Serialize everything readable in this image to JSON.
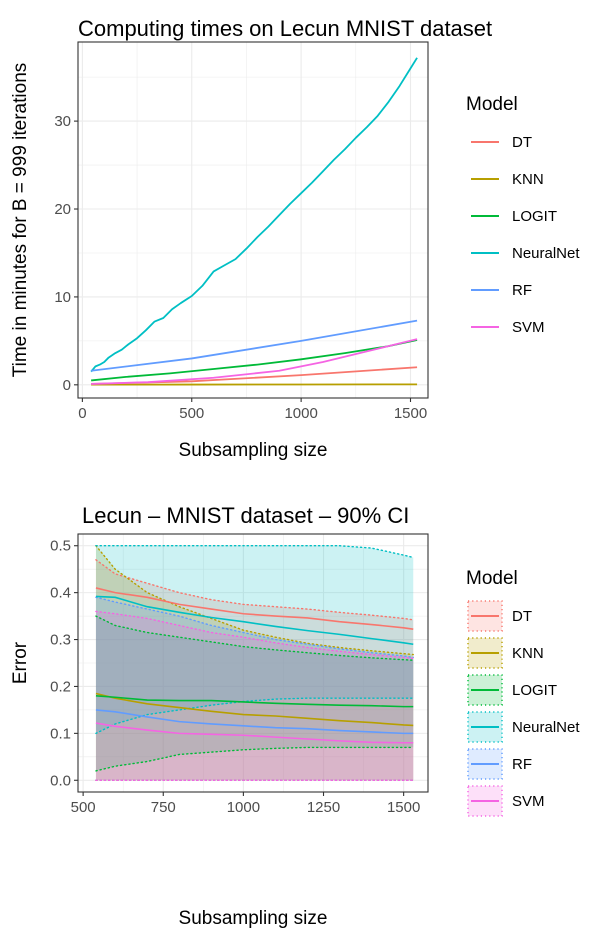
{
  "chart_data": [
    {
      "type": "line",
      "title": "Computing times on Lecun MNIST dataset",
      "xlabel": "Subsampling size",
      "ylabel": "Time in minutes for B = 999 iterations",
      "xlim": [
        -20,
        1580
      ],
      "ylim": [
        -1.5,
        39
      ],
      "xticks": [
        0,
        500,
        1000,
        1500
      ],
      "xtick_labels": [
        "0",
        "500",
        "1000",
        "1500"
      ],
      "yticks": [
        0,
        10,
        20,
        30
      ],
      "ytick_labels": [
        "0",
        "10",
        "20",
        "30"
      ],
      "grid": true,
      "legend": {
        "title": "Model",
        "position": "right"
      },
      "series": [
        {
          "name": "DT",
          "color": "#F8766D",
          "x": [
            40,
            500,
            1000,
            1530
          ],
          "y": [
            0.1,
            0.4,
            1.1,
            2.0
          ]
        },
        {
          "name": "KNN",
          "color": "#B79F00",
          "x": [
            40,
            500,
            1000,
            1530
          ],
          "y": [
            0.02,
            0.03,
            0.04,
            0.05
          ]
        },
        {
          "name": "LOGIT",
          "color": "#00BA38",
          "x": [
            40,
            200,
            400,
            600,
            800,
            1000,
            1200,
            1400,
            1530
          ],
          "y": [
            0.5,
            0.9,
            1.3,
            1.8,
            2.3,
            2.9,
            3.6,
            4.4,
            5.1
          ]
        },
        {
          "name": "NeuralNet",
          "color": "#00BFC4",
          "x": [
            40,
            60,
            80,
            100,
            120,
            150,
            180,
            210,
            250,
            290,
            330,
            370,
            410,
            450,
            500,
            550,
            600,
            650,
            700,
            750,
            800,
            850,
            900,
            950,
            1000,
            1050,
            1100,
            1150,
            1200,
            1250,
            1300,
            1350,
            1400,
            1450,
            1500,
            1530
          ],
          "y": [
            1.5,
            2.1,
            2.3,
            2.6,
            3.1,
            3.6,
            4.0,
            4.6,
            5.3,
            6.2,
            7.2,
            7.6,
            8.6,
            9.3,
            10.1,
            11.3,
            12.9,
            13.6,
            14.3,
            15.5,
            16.8,
            18.0,
            19.3,
            20.6,
            21.8,
            23.0,
            24.3,
            25.6,
            26.8,
            28.1,
            29.3,
            30.6,
            32.2,
            34.0,
            36.0,
            37.2
          ]
        },
        {
          "name": "RF",
          "color": "#619CFF",
          "x": [
            40,
            500,
            1000,
            1530
          ],
          "y": [
            1.6,
            3.0,
            5.0,
            7.3
          ]
        },
        {
          "name": "SVM",
          "color": "#F564E3",
          "x": [
            40,
            300,
            600,
            900,
            1100,
            1300,
            1530
          ],
          "y": [
            0.1,
            0.3,
            0.8,
            1.6,
            2.6,
            3.8,
            5.2
          ]
        }
      ]
    },
    {
      "type": "area",
      "title": "Lecun – MNIST dataset – 90% CI",
      "xlabel": "Subsampling size",
      "ylabel": "Error",
      "xlim": [
        484,
        1576
      ],
      "ylim": [
        -0.025,
        0.525
      ],
      "xticks": [
        500,
        750,
        1000,
        1250,
        1500
      ],
      "xtick_labels": [
        "500",
        "750",
        "1000",
        "1250",
        "1500"
      ],
      "yticks": [
        0,
        0.1,
        0.2,
        0.3,
        0.4,
        0.5
      ],
      "ytick_labels": [
        "0.0",
        "0.1",
        "0.2",
        "0.3",
        "0.4",
        "0.5"
      ],
      "grid": true,
      "legend": {
        "title": "Model",
        "position": "right"
      },
      "x": [
        540,
        600,
        700,
        800,
        900,
        1000,
        1100,
        1200,
        1300,
        1400,
        1500,
        1530
      ],
      "series": [
        {
          "name": "DT",
          "color": "#F8766D",
          "mean": [
            0.41,
            0.4,
            0.39,
            0.375,
            0.365,
            0.355,
            0.35,
            0.346,
            0.338,
            0.332,
            0.325,
            0.322
          ],
          "lower": [
            0.0,
            0.0,
            0.0,
            0.0,
            0.0,
            0.0,
            0.0,
            0.0,
            0.0,
            0.0,
            0.0,
            0.0
          ],
          "upper": [
            0.47,
            0.44,
            0.42,
            0.4,
            0.385,
            0.375,
            0.37,
            0.365,
            0.358,
            0.352,
            0.345,
            0.342
          ]
        },
        {
          "name": "KNN",
          "color": "#B79F00",
          "mean": [
            0.185,
            0.175,
            0.163,
            0.155,
            0.147,
            0.14,
            0.137,
            0.132,
            0.127,
            0.123,
            0.118,
            0.117
          ],
          "lower": [
            0.0,
            0.0,
            0.0,
            0.0,
            0.0,
            0.0,
            0.0,
            0.0,
            0.0,
            0.0,
            0.0,
            0.0
          ],
          "upper": [
            0.5,
            0.45,
            0.4,
            0.37,
            0.345,
            0.32,
            0.305,
            0.292,
            0.283,
            0.276,
            0.27,
            0.268
          ]
        },
        {
          "name": "LOGIT",
          "color": "#00BA38",
          "mean": [
            0.18,
            0.177,
            0.171,
            0.17,
            0.17,
            0.167,
            0.164,
            0.162,
            0.16,
            0.159,
            0.157,
            0.157
          ],
          "lower": [
            0.02,
            0.03,
            0.04,
            0.055,
            0.06,
            0.065,
            0.068,
            0.07,
            0.07,
            0.07,
            0.07,
            0.07
          ],
          "upper": [
            0.35,
            0.33,
            0.315,
            0.305,
            0.295,
            0.285,
            0.278,
            0.272,
            0.266,
            0.261,
            0.257,
            0.256
          ]
        },
        {
          "name": "NeuralNet",
          "color": "#00BFC4",
          "mean": [
            0.392,
            0.39,
            0.37,
            0.358,
            0.347,
            0.338,
            0.328,
            0.319,
            0.311,
            0.302,
            0.293,
            0.29
          ],
          "lower": [
            0.1,
            0.12,
            0.14,
            0.15,
            0.16,
            0.168,
            0.173,
            0.175,
            0.175,
            0.175,
            0.175,
            0.175
          ],
          "upper": [
            0.5,
            0.5,
            0.5,
            0.5,
            0.5,
            0.5,
            0.5,
            0.5,
            0.5,
            0.495,
            0.48,
            0.475
          ]
        },
        {
          "name": "RF",
          "color": "#619CFF",
          "mean": [
            0.15,
            0.146,
            0.135,
            0.125,
            0.12,
            0.116,
            0.112,
            0.11,
            0.106,
            0.103,
            0.1,
            0.1
          ],
          "lower": [
            0.0,
            0.0,
            0.0,
            0.0,
            0.0,
            0.0,
            0.0,
            0.0,
            0.0,
            0.0,
            0.0,
            0.0
          ],
          "upper": [
            0.39,
            0.38,
            0.365,
            0.35,
            0.33,
            0.315,
            0.3,
            0.29,
            0.28,
            0.272,
            0.265,
            0.262
          ]
        },
        {
          "name": "SVM",
          "color": "#F564E3",
          "mean": [
            0.122,
            0.115,
            0.107,
            0.1,
            0.098,
            0.096,
            0.092,
            0.088,
            0.084,
            0.081,
            0.08,
            0.08
          ],
          "lower": [
            0.0,
            0.0,
            0.0,
            0.0,
            0.0,
            0.0,
            0.0,
            0.0,
            0.0,
            0.0,
            0.0,
            0.0
          ],
          "upper": [
            0.36,
            0.355,
            0.345,
            0.33,
            0.315,
            0.305,
            0.293,
            0.283,
            0.275,
            0.268,
            0.262,
            0.26
          ]
        }
      ]
    }
  ]
}
